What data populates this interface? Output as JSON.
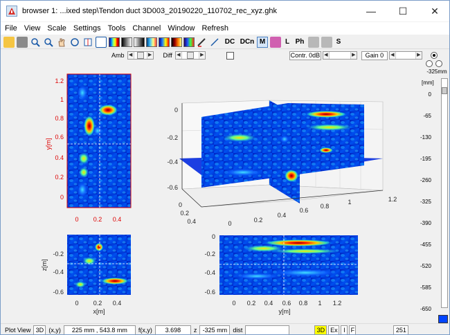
{
  "window": {
    "title": "browser 1: ...ixed step\\Tendon duct 3D003_20190220_110702_rec_xyz.ghk",
    "minimize": "—",
    "maximize": "☐",
    "close": "✕"
  },
  "menu": [
    "File",
    "View",
    "Scale",
    "Settings",
    "Tools",
    "Channel",
    "Window",
    "Refresh"
  ],
  "toolbar": {
    "dc_label": "DC",
    "dcn_label": "DCn",
    "m_label": "M",
    "l_label": "L",
    "ph_label": "Ph",
    "s_label": "S"
  },
  "controls": {
    "amb_label": "Amb",
    "diff_label": "Diff",
    "contr_label": "Contr. 0dB",
    "gain_label": "Gain 0"
  },
  "right_panel": {
    "depth_label": "-325mm",
    "unit_label": "[mm]",
    "ticks": [
      "0",
      "-65",
      "-130",
      "-195",
      "-260",
      "-325",
      "-390",
      "-455",
      "-520",
      "-585",
      "-650"
    ]
  },
  "plots": {
    "yz": {
      "ylabel": "y[m]",
      "yticks": [
        "1.2",
        "1",
        "0.8",
        "0.6",
        "0.4",
        "0.2",
        "0"
      ],
      "xticks": [
        "0",
        "0.2",
        "0.4"
      ]
    },
    "xz": {
      "ylabel": "z[m]",
      "xlabel": "x[m]",
      "yticks": [
        "-0.2",
        "-0.4",
        "-0.6"
      ],
      "xticks": [
        "0",
        "0.2",
        "0.4"
      ]
    },
    "yzside": {
      "xlabel": "y[m]",
      "yticks": [
        "0",
        "-0.2",
        "-0.4",
        "-0.6"
      ],
      "xticks": [
        "0",
        "0.2",
        "0.4",
        "0.6",
        "0.8",
        "1",
        "1.2"
      ]
    },
    "cube": {
      "zticks": [
        "0",
        "-0.2",
        "-0.4",
        "-0.6"
      ],
      "xticks": [
        "0",
        "0.2",
        "0.4"
      ],
      "yticks": [
        "0",
        "0.2",
        "0.4",
        "0.6",
        "0.8",
        "1",
        "1.2"
      ]
    }
  },
  "status": {
    "plot_view_label": "Plot View",
    "view_mode": "3D",
    "xy_label": "(x,y)",
    "xy_value": "225 mm , 543.8 mm",
    "fxy_label": "f(x,y)",
    "fxy_value": "3.698",
    "z_label": "z",
    "z_value": "-325 mm",
    "dist_label": "dist",
    "dist_value": "",
    "btn_3d": "3D",
    "btn_ex": "Ex",
    "btn_i": "I",
    "btn_f": "F",
    "count": "251"
  },
  "colors": {
    "accent_yellow": "#ffff00",
    "map_blue": "#00008f",
    "map_red": "#ff2a00",
    "highlight_blue": "#0044ff"
  }
}
